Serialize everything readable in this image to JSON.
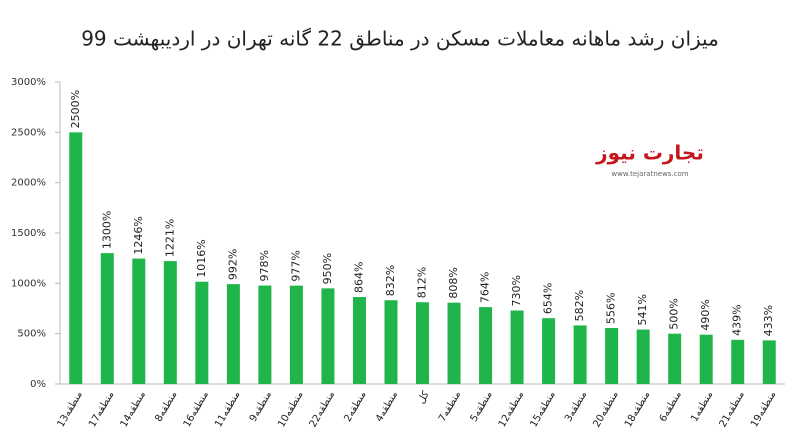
{
  "chart_data": {
    "type": "bar",
    "title": "میزان رشد ماهانه معاملات مسکن در مناطق 22 گانه تهران در اردیبهشت 99",
    "categories": [
      "منطقه13",
      "منطقه17",
      "منطقه14",
      "منطقه8",
      "منطقه16",
      "منطقه11",
      "منطقه9",
      "منطقه10",
      "منطقه22",
      "منطقه2",
      "منطقه4",
      "کل",
      "منطقه7",
      "منطقه5",
      "منطقه12",
      "منطقه15",
      "منطقه3",
      "منطقه20",
      "منطقه18",
      "منطقه6",
      "منطقه1",
      "منطقه21",
      "منطقه19"
    ],
    "values": [
      2500,
      1300,
      1246,
      1221,
      1016,
      992,
      978,
      977,
      950,
      864,
      832,
      812,
      808,
      764,
      730,
      654,
      582,
      556,
      541,
      500,
      490,
      439,
      433
    ],
    "value_labels": [
      "2500%",
      "1300%",
      "1246%",
      "1221%",
      "1016%",
      "992%",
      "978%",
      "977%",
      "950%",
      "864%",
      "832%",
      "812%",
      "808%",
      "764%",
      "730%",
      "654%",
      "582%",
      "556%",
      "541%",
      "500%",
      "490%",
      "439%",
      "433%"
    ],
    "color": "#1fb54a",
    "ylim": [
      0,
      3000
    ],
    "yticks": [
      {
        "value": 0,
        "label": "0%"
      },
      {
        "value": 500,
        "label": "500%"
      },
      {
        "value": 1000,
        "label": "1000%"
      },
      {
        "value": 1500,
        "label": "1500%"
      },
      {
        "value": 2000,
        "label": "2000%"
      },
      {
        "value": 2500,
        "label": "2500%"
      },
      {
        "value": 3000,
        "label": "3000%"
      }
    ],
    "grid": false
  },
  "logo": {
    "name": "تجارت نیوز",
    "url": "www.tejaratnews.com"
  }
}
